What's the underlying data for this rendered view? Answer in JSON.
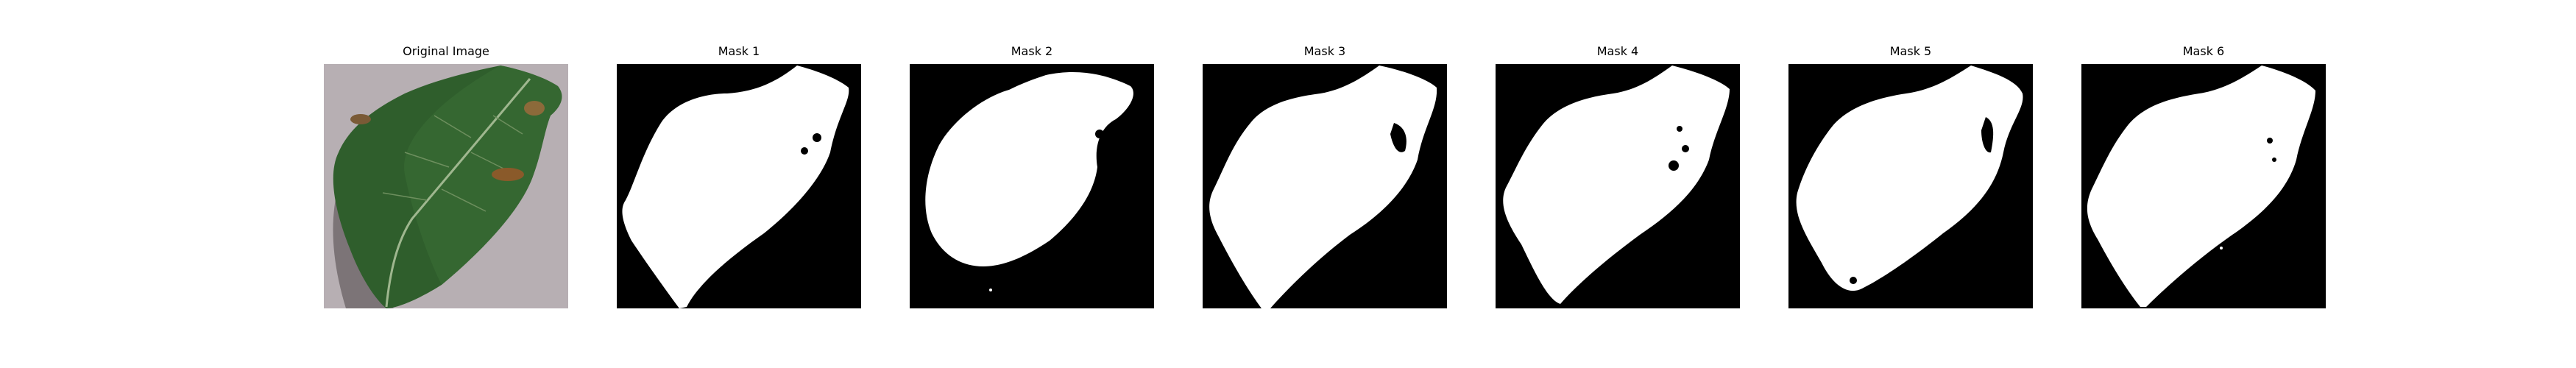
{
  "panels": [
    {
      "title": "Original Image"
    },
    {
      "title": "Mask 1"
    },
    {
      "title": "Mask 2"
    },
    {
      "title": "Mask 3"
    },
    {
      "title": "Mask 4"
    },
    {
      "title": "Mask 5"
    },
    {
      "title": "Mask 6"
    }
  ],
  "colors": {
    "background": "#ffffff",
    "mask_background": "#000000",
    "mask_foreground": "#ffffff",
    "leaf_green": "#2f5e2c",
    "card_gray": "#b9b0b4"
  }
}
